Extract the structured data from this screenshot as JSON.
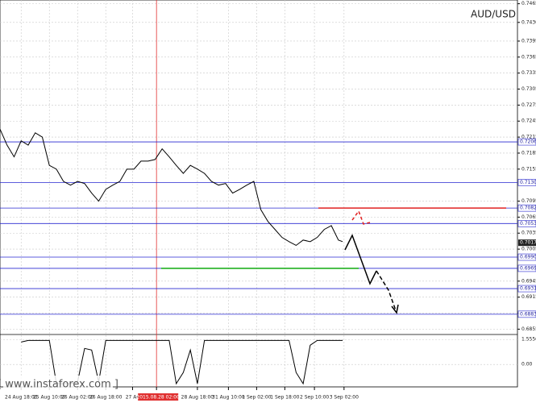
{
  "chart_data": {
    "type": "line",
    "title": "AUD/USD",
    "watermark": "[ www.instaforex.com ]",
    "x": [
      0,
      0.5,
      1,
      1.5,
      2,
      2.5,
      3,
      3.5,
      4,
      4.5,
      5,
      5.5,
      6,
      6.5,
      7,
      7.5,
      8,
      8.5,
      9,
      9.5,
      10,
      10.5,
      11,
      11.5,
      12,
      12.5,
      13,
      13.5,
      14,
      14.5,
      15,
      15.5,
      16,
      16.5,
      17,
      17.5,
      18,
      18.5,
      19,
      19.5,
      20,
      20.5,
      21,
      21.5,
      22,
      22.5,
      23,
      23.5,
      24,
      24.3
    ],
    "series": [
      {
        "color": "#000000",
        "values": [
          0.723,
          0.72,
          0.7178,
          0.7208,
          0.72,
          0.7223,
          0.7215,
          0.7162,
          0.7155,
          0.7132,
          0.7125,
          0.7132,
          0.7128,
          0.711,
          0.7095,
          0.7117,
          0.7125,
          0.7132,
          0.7155,
          0.7155,
          0.717,
          0.717,
          0.7173,
          0.7193,
          0.7178,
          0.7162,
          0.7147,
          0.7162,
          0.7155,
          0.7147,
          0.7132,
          0.7125,
          0.7128,
          0.711,
          0.7117,
          0.7125,
          0.7132,
          0.7079,
          0.7057,
          0.7042,
          0.7027,
          0.7019,
          0.7012,
          0.7022,
          0.7019,
          0.7027,
          0.7042,
          0.7049,
          0.7022,
          0.7019
        ]
      }
    ],
    "xlim": [
      0,
      36.7
    ],
    "ylim": [
      0.6845,
      0.7472
    ],
    "xticks": [
      {
        "value": 1.5,
        "label": "24 Aug 18:00"
      },
      {
        "value": 3.5,
        "label": "25 Aug 10:00"
      },
      {
        "value": 5.5,
        "label": "26 Aug 02:00"
      },
      {
        "value": 7.5,
        "label": "26 Aug 18:00"
      },
      {
        "value": 9.4,
        "label": "27 Au"
      },
      {
        "value": 11.1,
        "label": "2015.08.28 02:00"
      },
      {
        "value": 14,
        "label": "28 Aug 18:00"
      },
      {
        "value": 16.2,
        "label": "31 Aug 10:00"
      },
      {
        "value": 18.2,
        "label": "1 Sep 02:00"
      },
      {
        "value": 20.2,
        "label": "1 Sep 18:00"
      },
      {
        "value": 22.3,
        "label": "2 Sep 10:00"
      },
      {
        "value": 24.4,
        "label": "3 Sep 02:00"
      }
    ],
    "yticks": [
      0.7465,
      {
        "value": 0.743,
        "label": "0.7430"
      },
      0.7395,
      0.7365,
      0.7335,
      0.7305,
      0.7275,
      0.7245,
      0.7215,
      0.7185,
      0.7155,
      0.7095,
      0.7065,
      0.7035,
      0.7005,
      0.6945,
      0.6915,
      0.6885,
      0.6855
    ],
    "levels": [
      {
        "value": 0.7206,
        "label": "0.7206"
      },
      {
        "value": 0.713,
        "label": "0.7130"
      },
      {
        "value": 0.7082,
        "label": "0.7082"
      },
      {
        "value": 0.7053,
        "label": "0.7053"
      },
      {
        "value": 0.699,
        "label": "0.6990"
      },
      {
        "value": 0.6969,
        "label": "0.6969"
      },
      {
        "value": 0.6931,
        "label": "0.6931"
      },
      {
        "value": 0.6883,
        "label": "0.6883"
      }
    ],
    "current": {
      "value": 0.7017,
      "label": "0.7017"
    },
    "grid": true,
    "indicator": {
      "ylim": [
        -1.4,
        1.87
      ],
      "yticks": [
        {
          "value": 1.5556,
          "label": "1.5556"
        },
        {
          "value": 0,
          "label": "0.00"
        }
      ],
      "values": [
        null,
        null,
        null,
        1.4,
        1.5,
        1.5,
        1.5,
        1.5,
        -1.2,
        -1.2,
        -1.2,
        -1.1,
        1.0,
        0.9,
        -1.1,
        1.5,
        1.5,
        1.5,
        1.5,
        1.5,
        1.5,
        1.5,
        1.5,
        1.5,
        1.5,
        -1.2,
        -0.5,
        0.9,
        -1.2,
        1.5,
        1.5,
        1.5,
        1.5,
        1.5,
        1.5,
        1.5,
        1.5,
        1.5,
        1.5,
        1.5,
        1.5,
        1.5,
        -0.5,
        -1.2,
        1.2,
        1.5,
        1.5,
        1.5,
        1.5,
        1.5
      ]
    }
  }
}
